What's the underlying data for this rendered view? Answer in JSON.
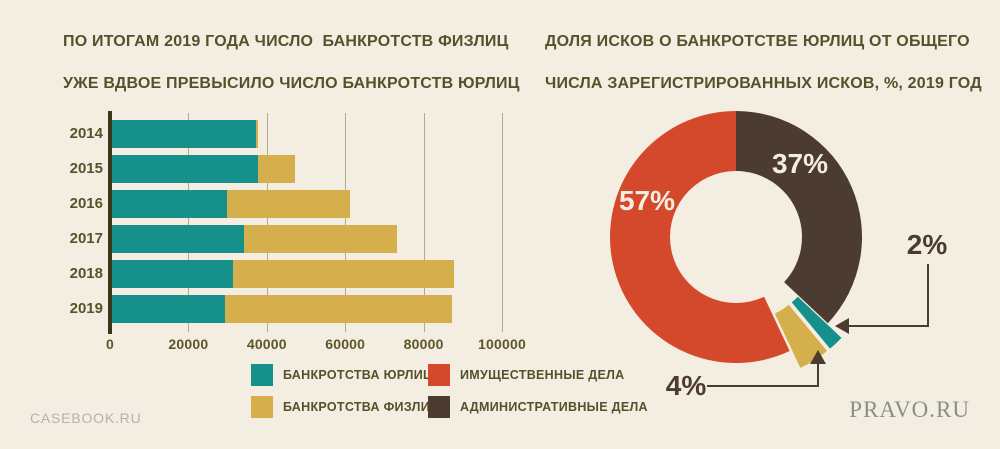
{
  "page": {
    "background_color": "#f3eee1",
    "footer_left": "CASEBOOK.RU",
    "footer_right": "PRAVO.RU"
  },
  "left_chart": {
    "title_lines": [
      "ПО ИТОГАМ 2019 ГОДА ЧИСЛО  БАНКРОТСТВ ФИЗЛИЦ",
      "УЖЕ ВДВОЕ ПРЕВЫСИЛО ЧИСЛО БАНКРОТСТВ ЮРЛИЦ"
    ]
  },
  "right_chart": {
    "title_lines": [
      "ДОЛЯ ИСКОВ О БАНКРОТСТВЕ ЮРЛИЦ ОТ ОБЩЕГО",
      "ЧИСЛА ЗАРЕГИСТРИРОВАННЫХ ИСКОВ, %, 2019 ГОД"
    ]
  },
  "legend": {
    "items": [
      {
        "label": "БАНКРОТСТВА ЮРЛИЦ",
        "color": "#16908a",
        "column": 0
      },
      {
        "label": "БАНКРОТСТВА ФИЗЛИЦ",
        "color": "#d6af4d",
        "column": 0
      },
      {
        "label": "ИМУЩЕСТВЕННЫЕ ДЕЛА",
        "color": "#d4492b",
        "column": 1
      },
      {
        "label": "АДМИНИСТРАТИВНЫЕ ДЕЛА",
        "color": "#4b3b30",
        "column": 1
      }
    ]
  },
  "chart_data": [
    {
      "type": "bar",
      "orientation": "horizontal",
      "stacked": true,
      "title": "ПО ИТОГАМ 2019 ГОДА ЧИСЛО БАНКРОТСТВ ФИЗЛИЦ УЖЕ ВДВОЕ ПРЕВЫСИЛО ЧИСЛО БАНКРОТСТВ ЮРЛИЦ",
      "categories": [
        "2014",
        "2015",
        "2016",
        "2017",
        "2018",
        "2019"
      ],
      "series": [
        {
          "name": "БАНКРОТСТВА ЮРЛИЦ",
          "color": "#16908a",
          "values": [
            37000,
            37500,
            29500,
            34000,
            31000,
            29000
          ]
        },
        {
          "name": "БАНКРОТСТВА ФИЗЛИЦ",
          "color": "#d6af4d",
          "values": [
            500,
            9500,
            31500,
            39000,
            56500,
            58000
          ]
        }
      ],
      "xlim": [
        0,
        100000
      ],
      "x_ticks": [
        "0",
        "20000",
        "40000",
        "60000",
        "80000",
        "100000"
      ],
      "grid": true,
      "legend_position": "bottom"
    },
    {
      "type": "pie",
      "donut": true,
      "title": "ДОЛЯ ИСКОВ О БАНКРОТСТВЕ ЮРЛИЦ ОТ ОБЩЕГО ЧИСЛА ЗАРЕГИСТРИРОВАННЫХ ИСКОВ, %, 2019 ГОД",
      "start_angle_deg": 0,
      "direction": "clockwise",
      "slices": [
        {
          "name": "АДМИНИСТРАТИВНЫЕ ДЕЛА",
          "value": 37,
          "label": "37%",
          "color": "#4b3b30",
          "exploded": false
        },
        {
          "name": "БАНКРОТСТВА ЮРЛИЦ",
          "value": 2,
          "label": "2%",
          "color": "#16908a",
          "exploded": true
        },
        {
          "name": "БАНКРОТСТВА ФИЗЛИЦ",
          "value": 4,
          "label": "4%",
          "color": "#d6af4d",
          "exploded": true
        },
        {
          "name": "ИМУЩЕСТВЕННЫЕ ДЕЛА",
          "value": 57,
          "label": "57%",
          "color": "#d4492b",
          "exploded": false
        }
      ]
    }
  ],
  "colors": {
    "text": "#56512b",
    "grid": "#b3a98f",
    "axis": "#3e3419",
    "callout": "#4b3b30",
    "label_light": "#f3eee1"
  }
}
